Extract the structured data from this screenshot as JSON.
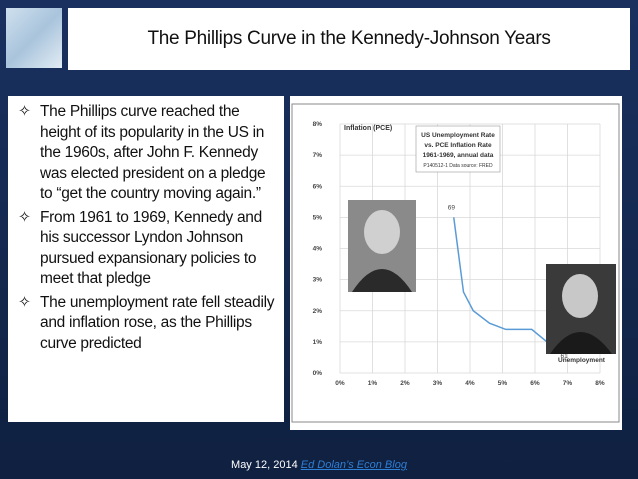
{
  "header": {
    "title": "The Phillips Curve in the Kennedy-Johnson Years"
  },
  "bullets": [
    "The Phillips curve reached the height of its popularity in the US in the 1960s, after John F. Kennedy was elected president on a pledge to “get the country moving again.”",
    "From 1961 to 1969, Kennedy and his successor Lyndon Johnson pursued expansionary policies to meet that pledge",
    "The unemployment rate fell steadily and inflation rose, as the Phillips curve predicted"
  ],
  "chart": {
    "type": "line",
    "y_label": "Inflation (PCE)",
    "x_label": "Unemployment",
    "legend_box": [
      "US Unemployment Rate",
      "vs. PCE Inflation Rate",
      "1961-1969,  annual data",
      "P140512-1 Data source: FRED"
    ],
    "annotations": {
      "first": "61",
      "last": "69"
    },
    "color": "#5b9bd5",
    "x": [
      6.6,
      5.9,
      5.5,
      5.1,
      4.6,
      4.1,
      3.8,
      3.7,
      3.5
    ],
    "values": [
      0.8,
      1.4,
      1.4,
      1.4,
      1.6,
      2.0,
      2.6,
      3.4,
      5.0
    ],
    "xlim": [
      0,
      8
    ],
    "ylim": [
      0,
      8
    ],
    "xticks": [
      {
        "value": 0,
        "label": "0%"
      },
      {
        "value": 1,
        "label": "1%"
      },
      {
        "value": 2,
        "label": "2%"
      },
      {
        "value": 3,
        "label": "3%"
      },
      {
        "value": 4,
        "label": "4%"
      },
      {
        "value": 5,
        "label": "5%"
      },
      {
        "value": 6,
        "label": "6%"
      },
      {
        "value": 7,
        "label": "7%"
      },
      {
        "value": 8,
        "label": "8%"
      }
    ],
    "yticks": [
      {
        "value": 0,
        "label": "0%"
      },
      {
        "value": 1,
        "label": "1%"
      },
      {
        "value": 2,
        "label": "2%"
      },
      {
        "value": 3,
        "label": "3%"
      },
      {
        "value": 4,
        "label": "4%"
      },
      {
        "value": 5,
        "label": "5%"
      },
      {
        "value": 6,
        "label": "6%"
      },
      {
        "value": 7,
        "label": "7%"
      },
      {
        "value": 8,
        "label": "8%"
      }
    ],
    "grid": true
  },
  "footer": {
    "date": "May 12, 2014",
    "link": "Ed Dolan’s Econ Blog"
  }
}
